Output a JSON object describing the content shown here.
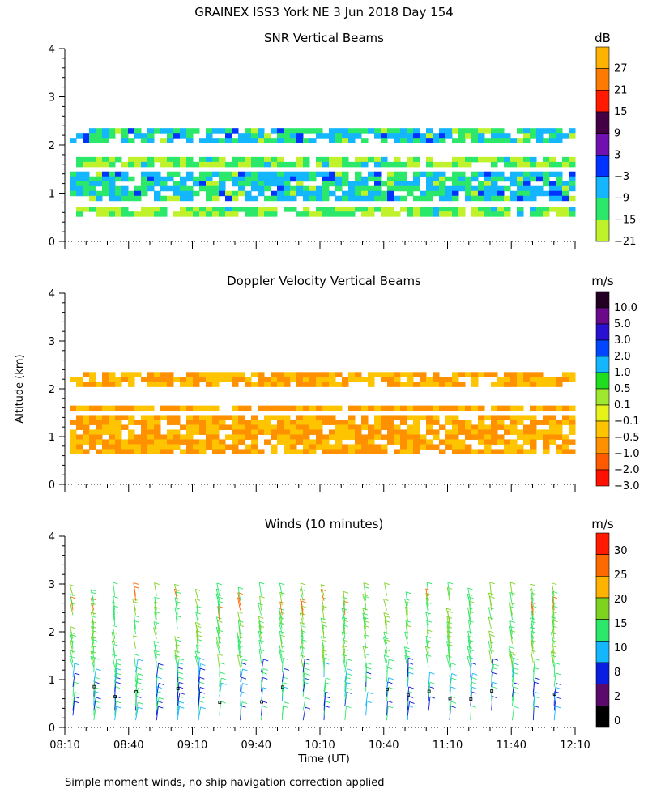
{
  "figure": {
    "title": "GRAINEX ISS3 York NE    3 Jun 2018 Day 154",
    "ylabel": "Altitude (km)",
    "xlabel": "Time (UT)",
    "footnote": "Simple moment winds, no ship navigation correction applied"
  },
  "chart_data": [
    {
      "type": "heatmap",
      "title": "SNR Vertical Beams",
      "ylabel": "Altitude (km)",
      "ylim": [
        0,
        4
      ],
      "y_ticks": [
        "0",
        "1",
        "2",
        "3",
        "4"
      ],
      "x_range": [
        "08:10",
        "12:10"
      ],
      "colorbar": {
        "unit": "dB",
        "labels": [
          "27",
          "21",
          "15",
          "9",
          "3",
          "−3",
          "−9",
          "−15",
          "−21"
        ],
        "colors": [
          "#ffb300",
          "#ff7a00",
          "#ff1a00",
          "#440044",
          "#7010b0",
          "#0033ff",
          "#13b6ff",
          "#2ce86a",
          "#bff22a"
        ]
      },
      "layers": [
        {
          "y0": 0.55,
          "y1": 0.72,
          "value": -15
        },
        {
          "y0": 0.85,
          "y1": 1.45,
          "value": -9
        },
        {
          "y0": 1.55,
          "y1": 1.75,
          "value": -15
        },
        {
          "y0": 2.1,
          "y1": 2.35,
          "value": -9
        }
      ]
    },
    {
      "type": "heatmap",
      "title": "Doppler Velocity Vertical Beams",
      "ylim": [
        0,
        4
      ],
      "y_ticks": [
        "0",
        "1",
        "2",
        "3",
        "4"
      ],
      "x_range": [
        "08:10",
        "12:10"
      ],
      "colorbar": {
        "unit": "m/s",
        "labels": [
          "10.0",
          "5.0",
          "3.0",
          "2.0",
          "1.0",
          "0.5",
          "0.1",
          "−0.1",
          "−0.5",
          "−1.0",
          "−2.0",
          "−3.0"
        ],
        "colors": [
          "#220022",
          "#6a0a8a",
          "#2a10d0",
          "#0046ff",
          "#13b6ff",
          "#20dd20",
          "#9ee830",
          "#e6f21a",
          "#ffc400",
          "#ff9000",
          "#ff5a00",
          "#ff1000"
        ]
      },
      "layers": [
        {
          "y0": 0.65,
          "y1": 1.45,
          "value": -0.5
        },
        {
          "y0": 1.55,
          "y1": 1.65,
          "value": -0.5
        },
        {
          "y0": 2.1,
          "y1": 2.35,
          "value": -0.5
        }
      ]
    },
    {
      "type": "scatter",
      "title": "Winds (10 minutes)",
      "ylim": [
        0,
        4
      ],
      "y_ticks": [
        "0",
        "1",
        "2",
        "3",
        "4"
      ],
      "x_ticks": [
        "08:10",
        "08:40",
        "09:10",
        "09:40",
        "10:10",
        "10:40",
        "11:10",
        "11:40",
        "12:10"
      ],
      "colorbar": {
        "unit": "m/s",
        "labels": [
          "30",
          "25",
          "20",
          "15",
          "10",
          "8",
          "2",
          "0"
        ],
        "colors": [
          "#ff1a00",
          "#ff6a00",
          "#ffb300",
          "#7ed321",
          "#2ce86a",
          "#13b6ff",
          "#0a1ee0",
          "#5a0a6a",
          "#000000"
        ]
      },
      "wind_profiles": 24,
      "dominant_speed_ms": "10–15"
    }
  ]
}
